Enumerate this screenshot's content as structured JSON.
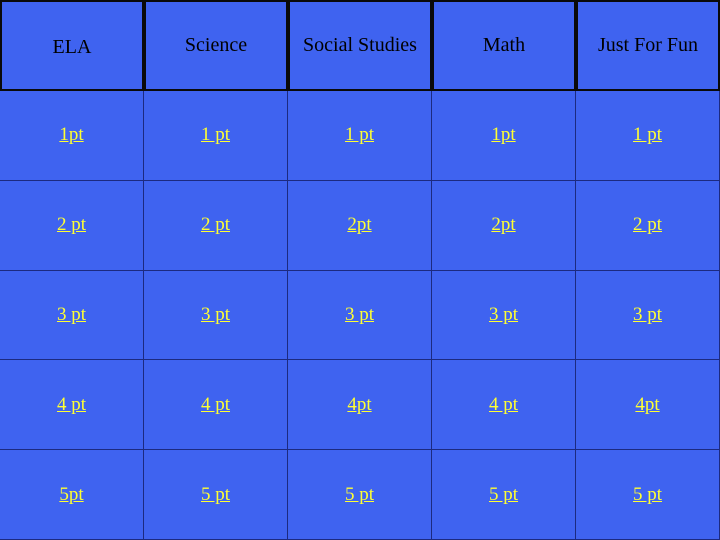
{
  "categories": [
    "ELA",
    "Science",
    "Social Studies",
    "Math",
    "Just For Fun"
  ],
  "rows": [
    [
      "1pt",
      "1 pt",
      "1 pt",
      "1pt",
      "1 pt"
    ],
    [
      "2 pt",
      "2 pt",
      "2pt",
      "2pt",
      "2 pt"
    ],
    [
      "3 pt",
      "3 pt",
      "3 pt",
      "3 pt",
      "3 pt"
    ],
    [
      "4 pt",
      "4 pt",
      "4pt",
      "4 pt",
      "4pt"
    ],
    [
      "5pt",
      "5 pt",
      "5 pt",
      "5 pt",
      "5 pt"
    ]
  ],
  "colors": {
    "board": "#3f63f0",
    "link": "#ffff33",
    "header_text": "#000000",
    "border": "#0a0a0a"
  }
}
